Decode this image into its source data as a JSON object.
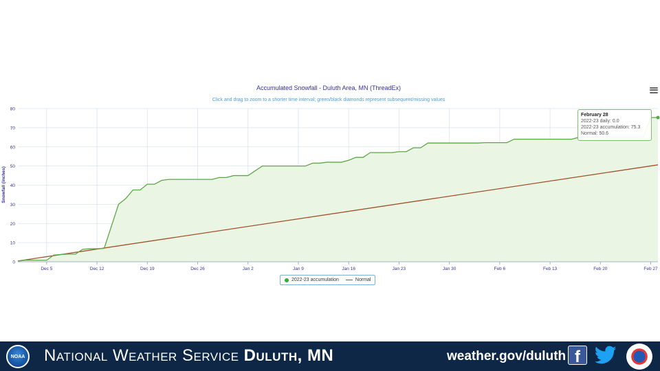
{
  "chart_data": {
    "type": "area",
    "title": "Accumulated Snowfall - Duluth Area, MN (ThreadEx)",
    "subtitle": "Click and drag to zoom to a shorter time interval; green/black diamonds represent subsequent/missing values",
    "ylabel": "Snowfall (inches)",
    "xlabel": "",
    "ylim": [
      0,
      80
    ],
    "yticks": [
      0,
      10,
      20,
      30,
      40,
      50,
      60,
      70,
      80
    ],
    "x_start": "Dec 1",
    "x_end": "Feb 28",
    "xticks": [
      {
        "label": "Dec 5",
        "day": 4
      },
      {
        "label": "Dec 12",
        "day": 11
      },
      {
        "label": "Dec 19",
        "day": 18
      },
      {
        "label": "Dec 26",
        "day": 25
      },
      {
        "label": "Jan 2",
        "day": 32
      },
      {
        "label": "Jan 9",
        "day": 39
      },
      {
        "label": "Jan 16",
        "day": 46
      },
      {
        "label": "Jan 23",
        "day": 53
      },
      {
        "label": "Jan 30",
        "day": 60
      },
      {
        "label": "Feb 6",
        "day": 67
      },
      {
        "label": "Feb 13",
        "day": 74
      },
      {
        "label": "Feb 20",
        "day": 81
      },
      {
        "label": "Feb 27",
        "day": 88
      }
    ],
    "grid": true,
    "legend_position": "bottom-center",
    "series": [
      {
        "name": "2022-23 accumulation",
        "color": "#5aa845",
        "fill": "#eaf5e3",
        "x_days": [
          0,
          1,
          2,
          3,
          4,
          5,
          6,
          7,
          8,
          9,
          10,
          11,
          12,
          13,
          14,
          15,
          16,
          17,
          18,
          19,
          20,
          21,
          22,
          23,
          24,
          25,
          26,
          27,
          28,
          29,
          30,
          31,
          32,
          33,
          34,
          35,
          36,
          37,
          38,
          39,
          40,
          41,
          42,
          43,
          44,
          45,
          46,
          47,
          48,
          49,
          50,
          51,
          52,
          53,
          54,
          55,
          56,
          57,
          58,
          59,
          60,
          61,
          62,
          63,
          64,
          65,
          66,
          67,
          68,
          69,
          70,
          71,
          72,
          73,
          74,
          75,
          76,
          77,
          78,
          79,
          80,
          81,
          82,
          83,
          84,
          85,
          86,
          87,
          88,
          89
        ],
        "values": [
          0.3,
          0.8,
          0.8,
          0.8,
          0.8,
          3.5,
          3.8,
          4.0,
          4.0,
          6.5,
          6.8,
          6.8,
          7.0,
          18.5,
          30.0,
          33.0,
          37.5,
          37.5,
          40.5,
          40.5,
          42.5,
          43.0,
          43.0,
          43.0,
          43.0,
          43.0,
          43.0,
          43.0,
          44.0,
          44.0,
          45.0,
          45.0,
          45.0,
          47.5,
          50.0,
          50.0,
          50.0,
          50.0,
          50.0,
          50.0,
          50.0,
          51.5,
          51.5,
          52.0,
          52.0,
          52.0,
          53.0,
          54.5,
          54.5,
          57.0,
          57.0,
          57.0,
          57.0,
          57.5,
          57.5,
          59.5,
          59.5,
          62.0,
          62.0,
          62.0,
          62.0,
          62.0,
          62.0,
          62.0,
          62.0,
          62.2,
          62.2,
          62.2,
          62.2,
          64.0,
          64.0,
          64.0,
          64.0,
          64.0,
          64.0,
          64.0,
          64.0,
          64.0,
          65.0,
          65.0,
          65.0,
          65.2,
          65.2,
          65.2,
          65.2,
          65.2,
          65.2,
          65.2,
          75.3,
          75.3
        ]
      },
      {
        "name": "Normal",
        "color": "#a0522d",
        "x_days": [
          0,
          89
        ],
        "values": [
          0.4,
          50.6
        ]
      }
    ]
  },
  "legend": {
    "items": [
      "2022-23 accumulation",
      "Normal"
    ]
  },
  "tooltip": {
    "title": "February 28",
    "line1": "2022-23 daily: 0.0",
    "line2": "2022-23 accumulation: 75.3",
    "line3": "Normal: 50.6"
  },
  "footer": {
    "logo_text": "NOAA",
    "title_regular": "National Weather Service",
    "title_bold": "Duluth, MN",
    "url": "weather.gov/duluth",
    "facebook_icon": "facebook-icon",
    "twitter_icon": "twitter-icon"
  }
}
